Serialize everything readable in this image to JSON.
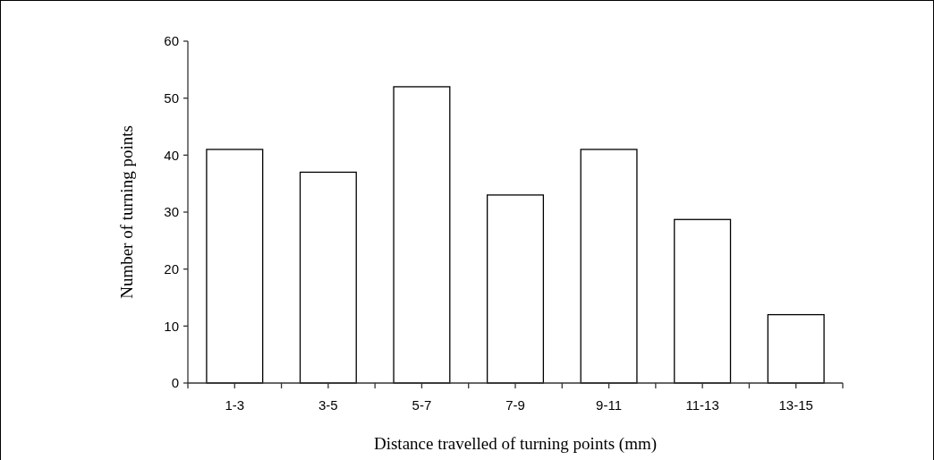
{
  "chart_data": {
    "type": "bar",
    "xlabel": "Distance travelled of turning points (mm)",
    "ylabel": "Number of turning points",
    "categories": [
      "1-3",
      "3-5",
      "5-7",
      "7-9",
      "9-11",
      "11-13",
      "13-15"
    ],
    "values": [
      41,
      37,
      52,
      33,
      41,
      28.7,
      12
    ],
    "color": "#ffffff",
    "ylim": [
      0,
      60
    ],
    "yticks": [
      0,
      10,
      20,
      30,
      40,
      50,
      60
    ]
  }
}
